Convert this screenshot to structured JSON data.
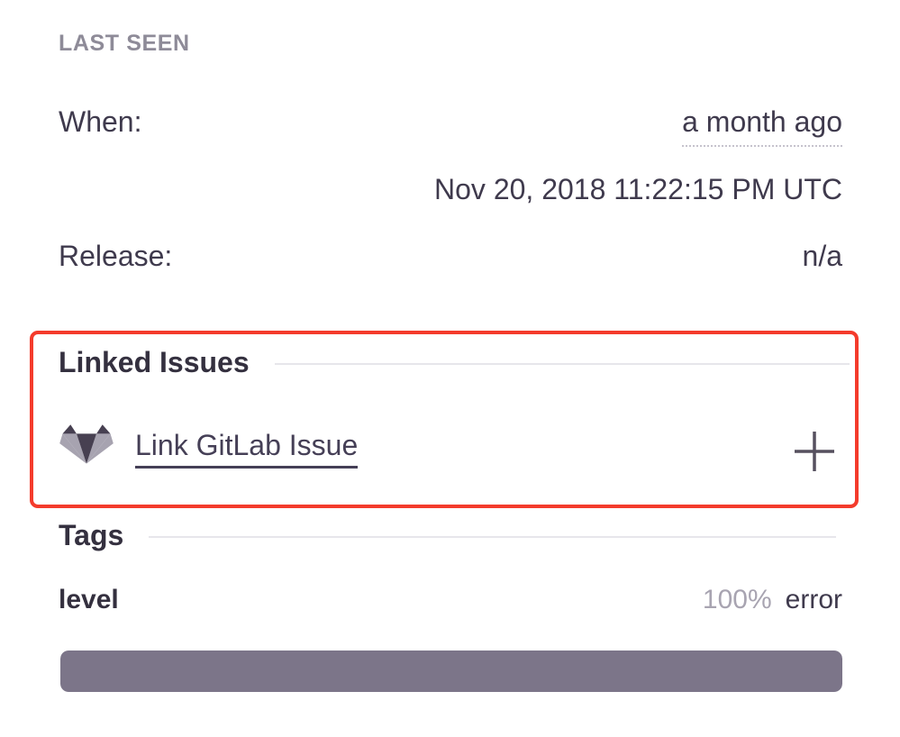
{
  "colors": {
    "text-dark": "#3f3a4d",
    "text-heading": "#34303f",
    "text-muted": "#8e8b98",
    "percent-gray": "#a8a4b1",
    "divider": "#e7e6eb",
    "dotted": "#c6c3cd",
    "link": "#453f56",
    "bar-fill": "#7c7589",
    "bar-track": "#f0eff3",
    "highlight-red": "#f43b2c",
    "icon-dark": "#474051",
    "icon-light": "#a7a3b0",
    "plus": "#56505f"
  },
  "last_seen": {
    "heading": "LAST SEEN",
    "when_label": "When:",
    "when_relative": "a month ago",
    "when_absolute": "Nov 20, 2018 11:22:15 PM UTC",
    "release_label": "Release:",
    "release_value": "n/a"
  },
  "linked_issues": {
    "heading": "Linked Issues",
    "link_label": "Link GitLab Issue",
    "provider_icon": "gitlab-tanuki-icon",
    "add_icon": "plus-icon"
  },
  "tags": {
    "heading": "Tags",
    "items": [
      {
        "key": "level",
        "percent": "100%",
        "value": "error",
        "bar_percent": 100
      }
    ]
  }
}
